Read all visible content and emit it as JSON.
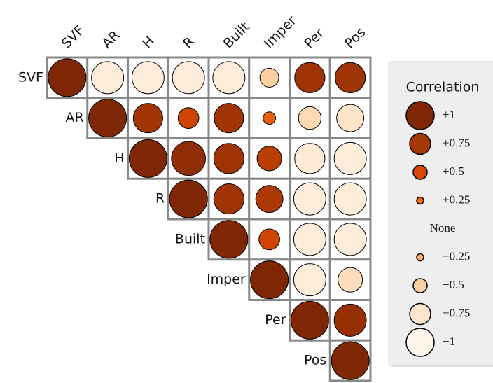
{
  "chart_data": {
    "type": "correlation",
    "variables": [
      "SVF",
      "AR",
      "H",
      "R",
      "Built",
      "Imper",
      "Per",
      "Pos"
    ],
    "values": [
      [
        1,
        -0.85,
        -0.85,
        -0.85,
        -0.85,
        -0.5,
        0.8,
        0.8
      ],
      [
        null,
        1,
        0.78,
        0.55,
        0.78,
        0.33,
        -0.6,
        -0.72
      ],
      [
        null,
        null,
        1,
        0.9,
        0.8,
        0.65,
        -0.8,
        -0.85
      ],
      [
        null,
        null,
        null,
        1,
        0.8,
        0.72,
        -0.85,
        -0.85
      ],
      [
        null,
        null,
        null,
        null,
        1,
        0.55,
        -0.85,
        -0.85
      ],
      [
        null,
        null,
        null,
        null,
        null,
        1,
        -0.85,
        -0.65
      ],
      [
        null,
        null,
        null,
        null,
        null,
        null,
        1,
        0.85
      ],
      [
        null,
        null,
        null,
        null,
        null,
        null,
        null,
        1
      ]
    ],
    "clim": [
      -1,
      1
    ],
    "colormap": [
      "#fff5eb",
      "#fee6ce",
      "#fdd0a2",
      "#fdae6b",
      "#fd8d3c",
      "#f16913",
      "#d94801",
      "#a63603",
      "#7f2704"
    ],
    "legend": {
      "title": "Correlation",
      "entries": [
        {
          "value": 1,
          "label": "+1"
        },
        {
          "value": 0.75,
          "label": "+0.75"
        },
        {
          "value": 0.5,
          "label": "+0.5"
        },
        {
          "value": 0.25,
          "label": "+0.25"
        },
        {
          "value": 0,
          "label": "None"
        },
        {
          "value": -0.25,
          "label": "−0.25"
        },
        {
          "value": -0.5,
          "label": "−0.5"
        },
        {
          "value": -0.75,
          "label": "−0.75"
        },
        {
          "value": -1,
          "label": "−1"
        }
      ]
    }
  }
}
